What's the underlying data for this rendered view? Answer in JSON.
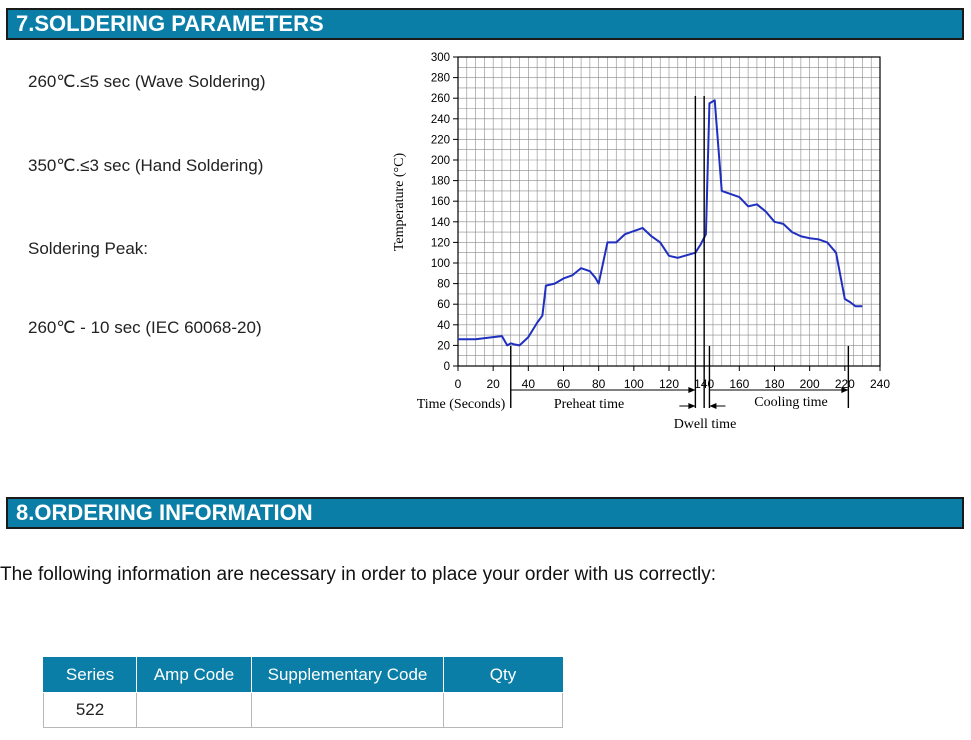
{
  "sections": {
    "soldering_title": "7.SOLDERING PARAMETERS",
    "ordering_title": "8.ORDERING INFORMATION"
  },
  "soldering": {
    "lines": [
      "260℃.≤5 sec (Wave Soldering)",
      "350℃.≤3 sec (Hand Soldering)",
      "Soldering Peak:",
      "260℃ - 10 sec (IEC 60068-20)"
    ]
  },
  "chart_data": {
    "type": "line",
    "xlabel": "Time (Seconds)",
    "ylabel": "Temperature (°C)",
    "xlim": [
      0,
      240
    ],
    "ylim": [
      0,
      300
    ],
    "xticks": [
      0,
      20,
      40,
      60,
      80,
      100,
      120,
      140,
      160,
      180,
      200,
      220,
      240
    ],
    "yticks": [
      0,
      20,
      40,
      60,
      80,
      100,
      120,
      140,
      160,
      180,
      200,
      220,
      240,
      260,
      280,
      300
    ],
    "grid": true,
    "color": "#1f2fbf",
    "x": [
      0,
      10,
      20,
      25,
      28,
      30,
      32,
      35,
      40,
      45,
      48,
      50,
      55,
      60,
      65,
      70,
      75,
      78,
      80,
      85,
      90,
      95,
      100,
      105,
      110,
      115,
      120,
      125,
      135,
      138,
      141,
      143,
      146,
      150,
      160,
      165,
      170,
      175,
      180,
      185,
      190,
      195,
      200,
      205,
      210,
      215,
      220,
      223,
      226,
      230
    ],
    "y": [
      26,
      26,
      28,
      29,
      20,
      22,
      21,
      20,
      28,
      42,
      49,
      78,
      80,
      85,
      88,
      95,
      92,
      86,
      80,
      120,
      120,
      128,
      131,
      134,
      126,
      120,
      107,
      105,
      110,
      118,
      128,
      255,
      258,
      170,
      164,
      155,
      157,
      150,
      140,
      138,
      130,
      126,
      124,
      123,
      120,
      110,
      65,
      62,
      58,
      58
    ],
    "annotations": {
      "preheat": "Preheat time",
      "dwell": "Dwell time",
      "cooling": "Cooling time"
    }
  },
  "ordering": {
    "intro": "The following information are necessary in order to place your order with us correctly:",
    "table": {
      "headers": [
        "Series",
        "Amp Code",
        "Supplementary Code",
        "Qty"
      ],
      "rows": [
        [
          "522",
          "",
          "",
          ""
        ]
      ]
    }
  }
}
